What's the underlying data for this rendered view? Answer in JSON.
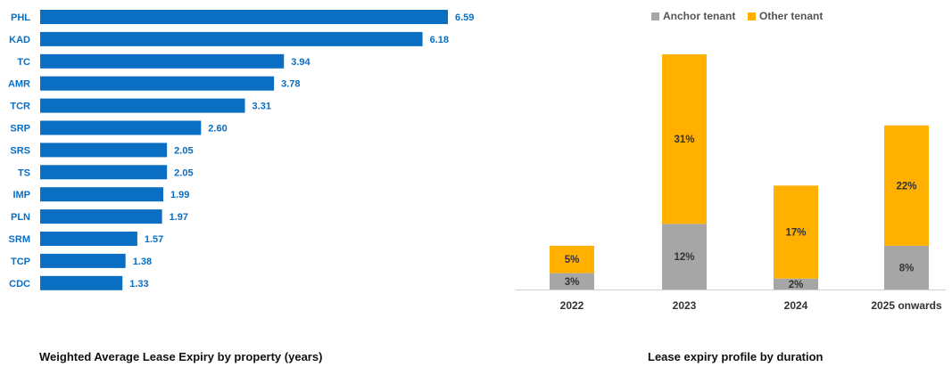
{
  "captions": {
    "left": "Weighted Average Lease Expiry by property (years)",
    "right": "Lease expiry profile by duration"
  },
  "colors": {
    "wale_bar": "#0a6ec3",
    "wale_text": "#0a6ec3",
    "anchor": "#a6a6a6",
    "other": "#ffb000"
  },
  "chart_data": [
    {
      "type": "bar",
      "orientation": "horizontal",
      "title": "Weighted Average Lease Expiry by property (years)",
      "categories": [
        "PHL",
        "KAD",
        "TC",
        "AMR",
        "TCR",
        "SRP",
        "SRS",
        "TS",
        "IMP",
        "PLN",
        "SRM",
        "TCP",
        "CDC"
      ],
      "values": [
        6.59,
        6.18,
        3.94,
        3.78,
        3.31,
        2.6,
        2.05,
        2.05,
        1.99,
        1.97,
        1.57,
        1.38,
        1.33
      ],
      "value_labels": [
        "6.59",
        "6.18",
        "3.94",
        "3.78",
        "3.31",
        "2.60",
        "2.05",
        "2.05",
        "1.99",
        "1.97",
        "1.57",
        "1.38",
        "1.33"
      ],
      "xlim": [
        0,
        6.59
      ],
      "grid": false
    },
    {
      "type": "bar",
      "stacked": true,
      "title": "Lease expiry profile by duration",
      "categories": [
        "2022",
        "2023",
        "2024",
        "2025 onwards"
      ],
      "series": [
        {
          "name": "Anchor tenant",
          "values": [
            3,
            12,
            2,
            8
          ],
          "labels": [
            "3%",
            "12%",
            "2%",
            "8%"
          ]
        },
        {
          "name": "Other tenant",
          "values": [
            5,
            31,
            17,
            22
          ],
          "labels": [
            "5%",
            "31%",
            "17%",
            "22%"
          ]
        }
      ],
      "ylim": [
        0,
        43
      ],
      "legend": "top",
      "grid": false
    }
  ]
}
